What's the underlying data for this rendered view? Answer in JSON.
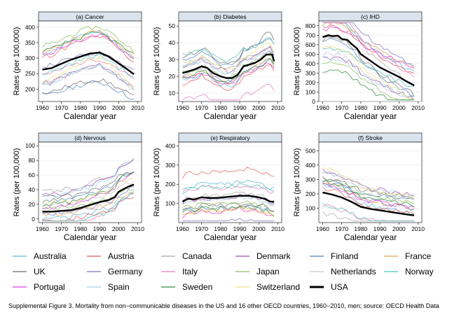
{
  "chart_data": [
    {
      "type": "line",
      "title": "(a) Cancer",
      "xlabel": "Calendar year",
      "ylabel": "Rates (per 100,000)",
      "xlim": [
        1958,
        2012
      ],
      "ylim": [
        160,
        420
      ],
      "xticks": [
        1960,
        1970,
        1980,
        1990,
        2000,
        2010
      ],
      "yticks": [
        200,
        250,
        300,
        350,
        400
      ],
      "usa": {
        "x": [
          1960,
          1965,
          1970,
          1975,
          1980,
          1985,
          1990,
          1995,
          2000,
          2005,
          2008
        ],
        "y": [
          263,
          268,
          282,
          295,
          305,
          315,
          318,
          305,
          283,
          262,
          248
        ]
      }
    },
    {
      "type": "line",
      "title": "(b) Diabetes",
      "xlabel": "Calendar year",
      "ylabel": "Rates (per 100,000)",
      "xlim": [
        1958,
        2012
      ],
      "ylim": [
        5,
        53
      ],
      "xticks": [
        1960,
        1970,
        1980,
        1990,
        2000,
        2010
      ],
      "yticks": [
        10,
        20,
        30,
        40,
        50
      ],
      "usa": {
        "x": [
          1960,
          1963,
          1966,
          1970,
          1973,
          1976,
          1980,
          1983,
          1986,
          1989,
          1992,
          1995,
          1998,
          2001,
          2004,
          2007,
          2008
        ],
        "y": [
          22,
          23,
          24,
          26,
          25,
          22,
          20,
          19,
          19,
          21,
          26,
          27,
          28,
          30,
          33,
          33,
          29
        ]
      }
    },
    {
      "type": "line",
      "title": "(c) IHD",
      "xlabel": "Calendar year",
      "ylabel": "Rates (per 100,000)",
      "xlim": [
        1958,
        2012
      ],
      "ylim": [
        0,
        850
      ],
      "xticks": [
        1960,
        1970,
        1980,
        1990,
        2000,
        2010
      ],
      "yticks": [
        0,
        100,
        200,
        300,
        400,
        500,
        600,
        700,
        800
      ],
      "usa": {
        "x": [
          1960,
          1963,
          1965,
          1968,
          1970,
          1973,
          1975,
          1978,
          1980,
          1985,
          1990,
          1995,
          2000,
          2005,
          2008
        ],
        "y": [
          680,
          700,
          690,
          695,
          660,
          650,
          610,
          560,
          500,
          430,
          360,
          310,
          260,
          200,
          170
        ]
      }
    },
    {
      "type": "line",
      "title": "(d) Nervous",
      "xlabel": "Calendar year",
      "ylabel": "Rates (per 100,000)",
      "xlim": [
        1958,
        2012
      ],
      "ylim": [
        -5,
        105
      ],
      "xticks": [
        1960,
        1970,
        1980,
        1990,
        2000,
        2010
      ],
      "yticks": [
        0,
        20,
        40,
        60,
        80,
        100
      ],
      "usa": {
        "x": [
          1960,
          1965,
          1970,
          1975,
          1980,
          1985,
          1990,
          1995,
          1998,
          2000,
          2002,
          2005,
          2008
        ],
        "y": [
          10,
          10,
          11,
          12,
          15,
          19,
          23,
          26,
          30,
          37,
          40,
          44,
          47
        ]
      }
    },
    {
      "type": "line",
      "title": "(e) Respiratory",
      "xlabel": "Calendar year",
      "ylabel": "Rates (per 100,000)",
      "xlim": [
        1958,
        2012
      ],
      "ylim": [
        0,
        420
      ],
      "xticks": [
        1960,
        1970,
        1980,
        1990,
        2000,
        2010
      ],
      "yticks": [
        100,
        200,
        300,
        400
      ],
      "usa": {
        "x": [
          1960,
          1963,
          1966,
          1970,
          1975,
          1980,
          1985,
          1990,
          1995,
          2000,
          2003,
          2006,
          2008
        ],
        "y": [
          110,
          125,
          120,
          132,
          128,
          130,
          136,
          140,
          140,
          132,
          124,
          110,
          108
        ]
      }
    },
    {
      "type": "line",
      "title": "(f) Stroke",
      "xlabel": "Calendar year",
      "ylabel": "Rates (per 100,000)",
      "xlim": [
        1958,
        2012
      ],
      "ylim": [
        0,
        560
      ],
      "xticks": [
        1960,
        1970,
        1980,
        1990,
        2000,
        2010
      ],
      "yticks": [
        100,
        200,
        300,
        400,
        500
      ],
      "usa": {
        "x": [
          1960,
          1965,
          1970,
          1975,
          1980,
          1985,
          1990,
          1995,
          2000,
          2005,
          2008
        ],
        "y": [
          210,
          195,
          175,
          145,
          110,
          95,
          85,
          75,
          65,
          55,
          50
        ]
      }
    }
  ],
  "legend": [
    {
      "name": "Australia",
      "color": "#52b6d8"
    },
    {
      "name": "Austria",
      "color": "#e35b57"
    },
    {
      "name": "Canada",
      "color": "#a6a6a6"
    },
    {
      "name": "Denmark",
      "color": "#a04ab0"
    },
    {
      "name": "Finland",
      "color": "#4a86c0"
    },
    {
      "name": "France",
      "color": "#e2a04a"
    },
    {
      "name": "UK",
      "color": "#6e6e6e"
    },
    {
      "name": "Germany",
      "color": "#7e72bf"
    },
    {
      "name": "Italy",
      "color": "#e67cc0"
    },
    {
      "name": "Japan",
      "color": "#8fbf5a"
    },
    {
      "name": "Netherlands",
      "color": "#c9c9c9"
    },
    {
      "name": "Norway",
      "color": "#4fc4b4"
    },
    {
      "name": "Portugal",
      "color": "#e23de0"
    },
    {
      "name": "Spain",
      "color": "#9fd4ea"
    },
    {
      "name": "Sweden",
      "color": "#2e8a3c"
    },
    {
      "name": "Switzerland",
      "color": "#f0e07a"
    },
    {
      "name": "USA",
      "color": "#000000"
    }
  ],
  "caption": "Supplemental Figure 3. Mortality from non−communicable diseases in the US and 16 other OECD countries, 1960−2010, men; source: OECD Health Data"
}
